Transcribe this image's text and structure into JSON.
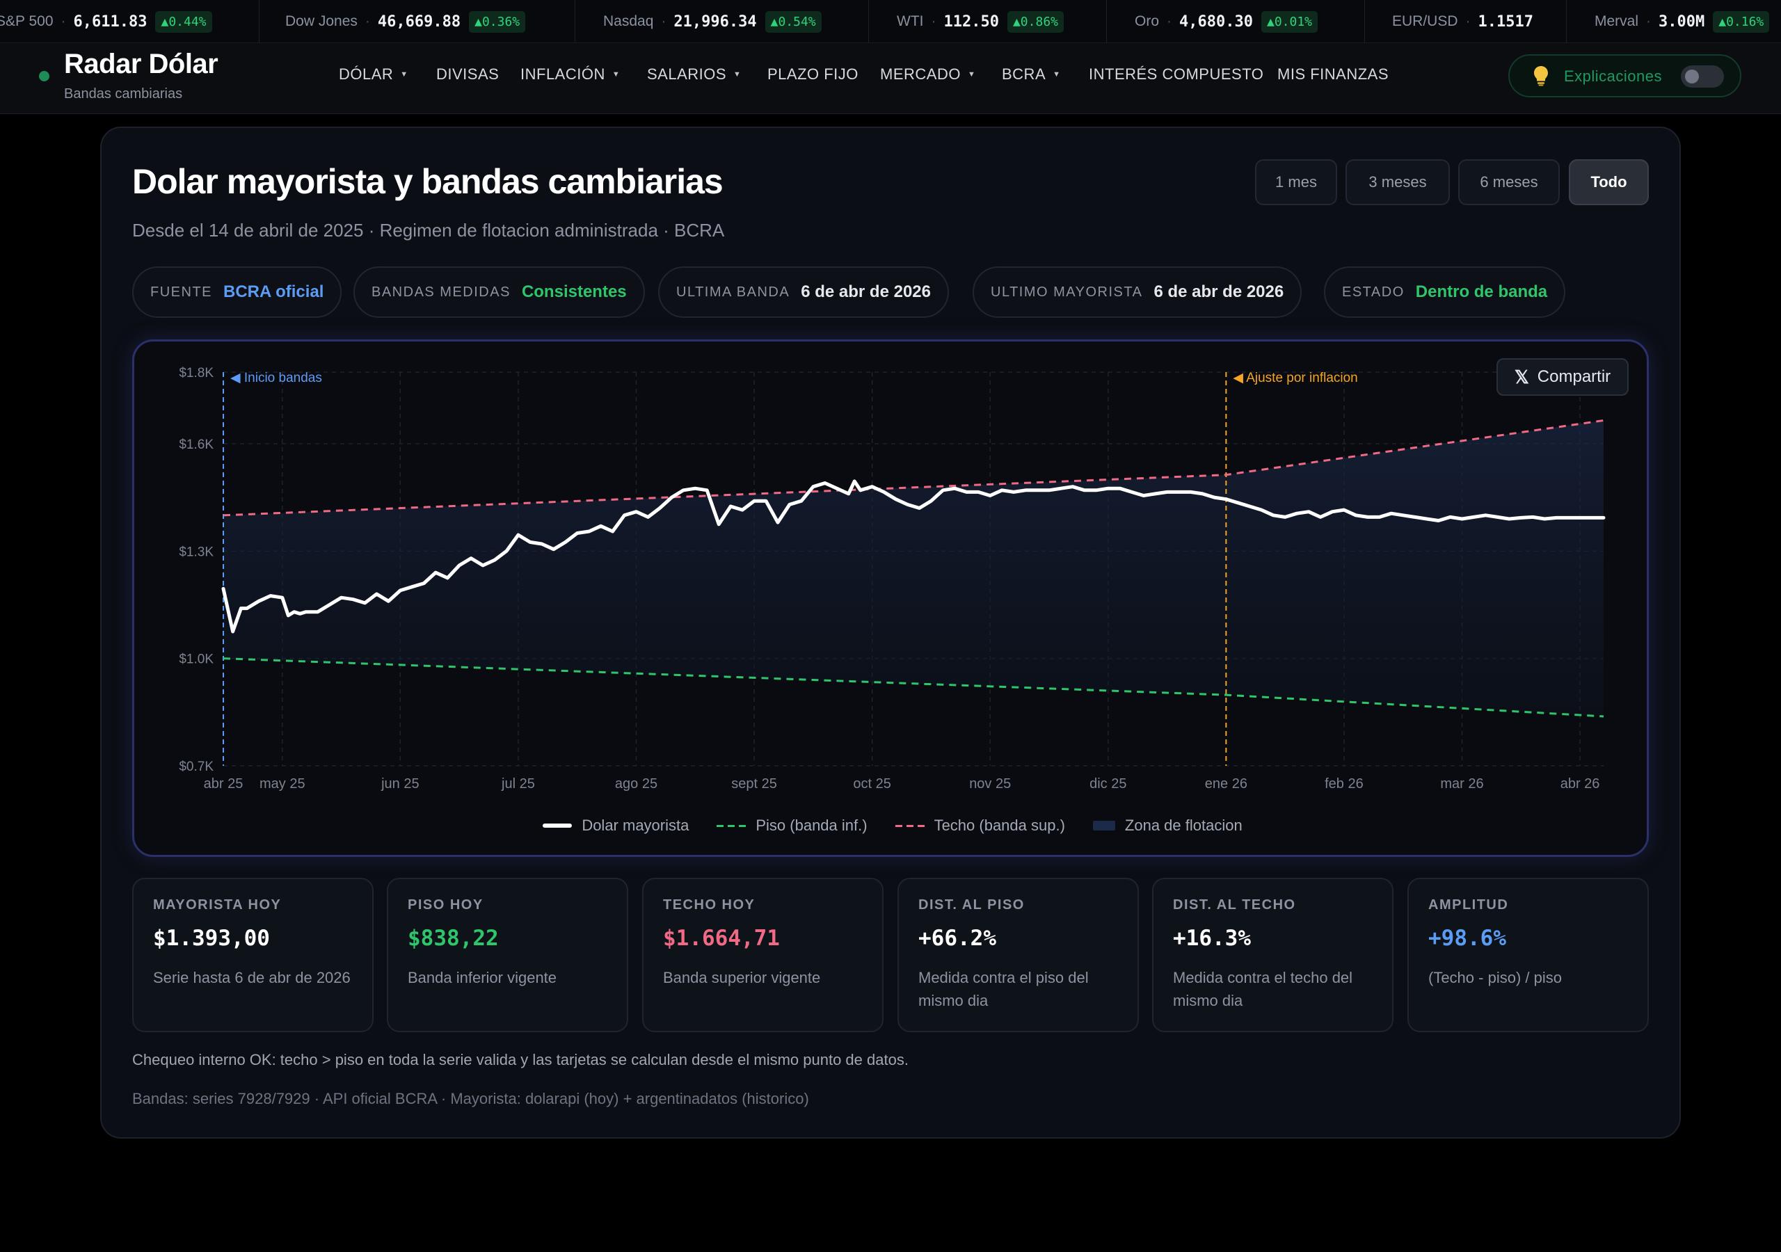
{
  "ticker": [
    {
      "name": "S&P 500",
      "value": "6,611.83",
      "change": "▲0.44%"
    },
    {
      "name": "Dow Jones",
      "value": "46,669.88",
      "change": "▲0.36%"
    },
    {
      "name": "Nasdaq",
      "value": "21,996.34",
      "change": "▲0.54%"
    },
    {
      "name": "WTI",
      "value": "112.50",
      "change": "▲0.86%"
    },
    {
      "name": "Oro",
      "value": "4,680.30",
      "change": "▲0.01%"
    },
    {
      "name": "EUR/USD",
      "value": "1.1517",
      "change": ""
    },
    {
      "name": "Merval",
      "value": "3.00M",
      "change": "▲0.16%"
    }
  ],
  "brand": {
    "title": "Radar Dólar",
    "subtitle": "Bandas cambiarias"
  },
  "nav": [
    {
      "label": "DÓLAR",
      "dropdown": true
    },
    {
      "label": "DIVISAS",
      "dropdown": false
    },
    {
      "label": "INFLACIÓN",
      "dropdown": true
    },
    {
      "label": "SALARIOS",
      "dropdown": true
    },
    {
      "label": "PLAZO FIJO",
      "dropdown": false
    },
    {
      "label": "MERCADO",
      "dropdown": true
    },
    {
      "label": "BCRA",
      "dropdown": true
    },
    {
      "label": "INTERÉS COMPUESTO",
      "dropdown": false
    },
    {
      "label": "MIS FINANZAS",
      "dropdown": false
    }
  ],
  "explicaciones": {
    "label": "Explicaciones",
    "enabled": false,
    "icon": "lightbulb-icon"
  },
  "page": {
    "title": "Dolar mayorista y bandas cambiarias",
    "subtitle": "Desde el 14 de abril de 2025 · Regimen de flotacion administrada · BCRA"
  },
  "ranges": [
    {
      "label": "1 mes",
      "active": false
    },
    {
      "label": "3 meses",
      "active": false
    },
    {
      "label": "6 meses",
      "active": false
    },
    {
      "label": "Todo",
      "active": true
    }
  ],
  "pills": [
    {
      "key": "FUENTE",
      "value": "BCRA oficial",
      "color": "#5b9cf5"
    },
    {
      "key": "BANDAS MEDIDAS",
      "value": "Consistentes",
      "color": "#2fc56b"
    },
    {
      "key": "ULTIMA BANDA",
      "value": "6 de abr de 2026",
      "color": "#e6e8ee"
    },
    {
      "key": "ULTIMO MAYORISTA",
      "value": "6 de abr de 2026",
      "color": "#e6e8ee"
    },
    {
      "key": "ESTADO",
      "value": "Dentro de banda",
      "color": "#2fc56b"
    }
  ],
  "share": {
    "label": "Compartir",
    "icon": "x-logo-icon"
  },
  "colors": {
    "accent_green": "#2fc56b",
    "accent_red": "#f06a86",
    "accent_blue": "#5b9cf5",
    "annotation_orange": "#f5a524"
  },
  "chart_data": {
    "type": "line",
    "title": "",
    "y_ticks": [
      "$1.8K",
      "$1.6K",
      "$1.3K",
      "$1.0K",
      "$0.7K"
    ],
    "y_tick_values": [
      1800,
      1600,
      1300,
      1000,
      700
    ],
    "x_ticks": [
      "abr 25",
      "may 25",
      "jun 25",
      "jul 25",
      "ago 25",
      "sept 25",
      "oct 25",
      "nov 25",
      "dic 25",
      "ene 26",
      "feb 26",
      "mar 26",
      "abr 26"
    ],
    "x_tick_positions": [
      0,
      0.5,
      1.5,
      2.5,
      3.5,
      4.5,
      5.5,
      6.5,
      7.5,
      8.5,
      9.5,
      10.5,
      11.5
    ],
    "x_range": [
      0,
      11.7
    ],
    "annotations": [
      {
        "x": 0,
        "label": "◀ Inicio bandas",
        "color": "#5b9cf5"
      },
      {
        "x": 8.5,
        "label": "◀ Ajuste por inflacion",
        "color": "#f5a524"
      }
    ],
    "series": [
      {
        "name": "Dolar mayorista",
        "color": "#ffffff",
        "style": "solid",
        "x": [
          0,
          0.08,
          0.15,
          0.2,
          0.3,
          0.4,
          0.5,
          0.55,
          0.6,
          0.65,
          0.7,
          0.8,
          0.9,
          1.0,
          1.1,
          1.2,
          1.3,
          1.4,
          1.5,
          1.6,
          1.7,
          1.8,
          1.9,
          2.0,
          2.1,
          2.2,
          2.3,
          2.4,
          2.5,
          2.6,
          2.7,
          2.8,
          2.9,
          3.0,
          3.1,
          3.2,
          3.3,
          3.4,
          3.5,
          3.6,
          3.7,
          3.8,
          3.9,
          4.0,
          4.1,
          4.2,
          4.3,
          4.4,
          4.5,
          4.6,
          4.7,
          4.8,
          4.9,
          5.0,
          5.1,
          5.2,
          5.3,
          5.35,
          5.4,
          5.5,
          5.6,
          5.7,
          5.8,
          5.9,
          6.0,
          6.1,
          6.2,
          6.3,
          6.4,
          6.5,
          6.6,
          6.7,
          6.8,
          6.9,
          7.0,
          7.1,
          7.2,
          7.3,
          7.4,
          7.5,
          7.6,
          7.7,
          7.8,
          7.9,
          8.0,
          8.1,
          8.2,
          8.3,
          8.4,
          8.5,
          8.6,
          8.7,
          8.8,
          8.9,
          9.0,
          9.1,
          9.2,
          9.3,
          9.4,
          9.5,
          9.6,
          9.7,
          9.8,
          9.9,
          10.0,
          10.1,
          10.2,
          10.3,
          10.4,
          10.5,
          10.6,
          10.7,
          10.8,
          10.9,
          11.0,
          11.1,
          11.2,
          11.3,
          11.4,
          11.5,
          11.6,
          11.7
        ],
        "values": [
          1195,
          1075,
          1140,
          1140,
          1160,
          1175,
          1170,
          1120,
          1130,
          1125,
          1130,
          1130,
          1150,
          1170,
          1165,
          1155,
          1180,
          1160,
          1190,
          1200,
          1210,
          1240,
          1225,
          1260,
          1280,
          1260,
          1275,
          1300,
          1345,
          1325,
          1320,
          1305,
          1325,
          1350,
          1355,
          1370,
          1355,
          1400,
          1410,
          1395,
          1420,
          1450,
          1470,
          1475,
          1470,
          1375,
          1425,
          1415,
          1440,
          1440,
          1380,
          1430,
          1440,
          1480,
          1490,
          1475,
          1460,
          1495,
          1470,
          1480,
          1465,
          1445,
          1430,
          1420,
          1440,
          1470,
          1475,
          1465,
          1465,
          1455,
          1470,
          1465,
          1470,
          1470,
          1470,
          1475,
          1480,
          1470,
          1470,
          1475,
          1475,
          1465,
          1455,
          1460,
          1465,
          1465,
          1465,
          1460,
          1450,
          1445,
          1435,
          1425,
          1415,
          1400,
          1395,
          1405,
          1410,
          1395,
          1410,
          1415,
          1400,
          1395,
          1395,
          1405,
          1400,
          1395,
          1390,
          1385,
          1395,
          1390,
          1395,
          1400,
          1395,
          1390,
          1393,
          1395,
          1390,
          1393,
          1393,
          1393,
          1393,
          1393
        ]
      },
      {
        "name": "Piso (banda inf.)",
        "color": "#2fc56b",
        "style": "dashed",
        "x": [
          0,
          8.5,
          11.7
        ],
        "values": [
          1000,
          898,
          838
        ]
      },
      {
        "name": "Techo (banda sup.)",
        "color": "#f06a86",
        "style": "dashed",
        "x": [
          0,
          8.5,
          11.7
        ],
        "values": [
          1400,
          1513,
          1665
        ]
      }
    ],
    "legend": [
      {
        "label": "Dolar mayorista",
        "color": "#ffffff",
        "style": "solid"
      },
      {
        "label": "Piso (banda inf.)",
        "color": "#2fc56b",
        "style": "dashed"
      },
      {
        "label": "Techo (banda sup.)",
        "color": "#f06a86",
        "style": "dashed"
      },
      {
        "label": "Zona de flotacion",
        "color": "#1c2a4a",
        "style": "fill"
      }
    ],
    "ylim": [
      700,
      1800
    ],
    "grid": true,
    "legend_position": "bottom"
  },
  "stats": [
    {
      "label": "MAYORISTA HOY",
      "value": "$1.393,00",
      "desc": "Serie hasta 6 de abr de 2026",
      "color": "#ffffff"
    },
    {
      "label": "PISO HOY",
      "value": "$838,22",
      "desc": "Banda inferior vigente",
      "color": "#2fc56b"
    },
    {
      "label": "TECHO HOY",
      "value": "$1.664,71",
      "desc": "Banda superior vigente",
      "color": "#f06a86"
    },
    {
      "label": "DIST. AL PISO",
      "value": "+66.2%",
      "desc": "Medida contra el piso del mismo dia",
      "color": "#ffffff"
    },
    {
      "label": "DIST. AL TECHO",
      "value": "+16.3%",
      "desc": "Medida contra el techo del mismo dia",
      "color": "#ffffff"
    },
    {
      "label": "AMPLITUD",
      "value": "+98.6%",
      "desc": "(Techo - piso) / piso",
      "color": "#5b9cf5"
    }
  ],
  "notes": {
    "check": "Chequeo interno OK: techo > piso en toda la serie valida y las tarjetas se calculan desde el mismo punto de datos.",
    "sources": "Bandas: series 7928/7929 · API oficial BCRA · Mayorista: dolarapi (hoy) + argentinadatos (historico)"
  }
}
